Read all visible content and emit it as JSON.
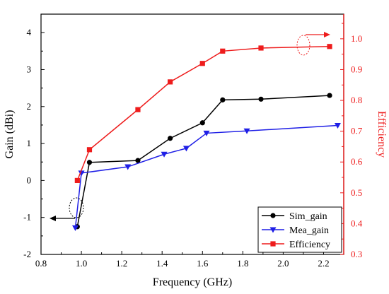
{
  "chart_data": {
    "type": "line",
    "xlabel": "Frequency (GHz)",
    "ylabel_left": "Gain (dBi)",
    "ylabel_right": "Efficiency",
    "xlim": [
      0.8,
      2.3
    ],
    "ylim_left": [
      -2,
      4.5
    ],
    "ylim_right": [
      0.3,
      1.08
    ],
    "x_ticks": [
      "0.8",
      "1.0",
      "1.2",
      "1.4",
      "1.6",
      "1.8",
      "2.0",
      "2.2"
    ],
    "y_left_ticks": [
      "-2",
      "-1",
      "0",
      "1",
      "2",
      "3",
      "4"
    ],
    "y_right_ticks": [
      "0.3",
      "0.4",
      "0.5",
      "0.6",
      "0.7",
      "0.8",
      "0.9",
      "1.0"
    ],
    "grid": false,
    "legend_position": "bottom-right",
    "colors": {
      "left_axis": "#000000",
      "right_axis": "#ee1c1c"
    },
    "series": [
      {
        "name": "Sim_gain",
        "axis": "left",
        "color": "#000000",
        "marker": "circle",
        "x": [
          0.98,
          1.04,
          1.28,
          1.44,
          1.6,
          1.7,
          1.89,
          2.23
        ],
        "y": [
          -1.25,
          0.49,
          0.54,
          1.14,
          1.56,
          2.18,
          2.2,
          2.3
        ]
      },
      {
        "name": "Mea_gain",
        "axis": "left",
        "color": "#1f1fe6",
        "marker": "triangle-down",
        "x": [
          0.97,
          1.0,
          1.23,
          1.41,
          1.52,
          1.62,
          1.82,
          2.27
        ],
        "y": [
          -1.28,
          0.2,
          0.37,
          0.71,
          0.87,
          1.28,
          1.34,
          1.49
        ]
      },
      {
        "name": "Efficiency",
        "axis": "right",
        "color": "#ee1c1c",
        "marker": "square",
        "x": [
          0.98,
          1.04,
          1.28,
          1.44,
          1.6,
          1.7,
          1.89,
          2.23
        ],
        "y": [
          0.54,
          0.64,
          0.77,
          0.86,
          0.92,
          0.96,
          0.97,
          0.975
        ]
      }
    ]
  }
}
